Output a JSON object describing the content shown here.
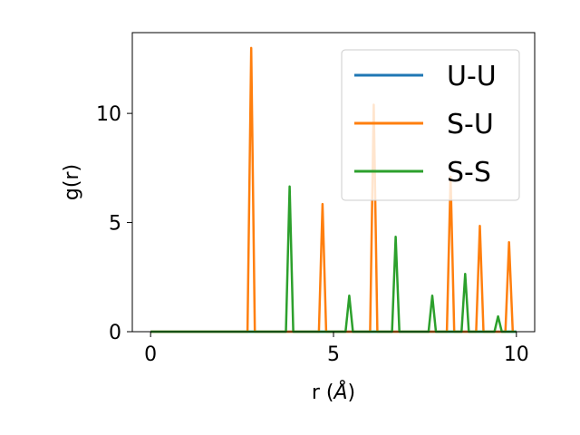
{
  "chart_data": {
    "type": "line",
    "xlabel_prefix": "r (",
    "xlabel_unit": "Å",
    "xlabel_suffix": ")",
    "ylabel": "g(r)",
    "xlim": [
      -0.5,
      10.5
    ],
    "ylim": [
      0,
      13.7
    ],
    "xticks": [
      0,
      5,
      10
    ],
    "yticks": [
      0,
      5,
      10
    ],
    "grid": false,
    "legend_position": "top-right",
    "series": [
      {
        "name": "U-U",
        "color": "#1f77b4",
        "x": [
          0,
          10
        ],
        "y": [
          0,
          0
        ]
      },
      {
        "name": "S-U",
        "color": "#ff7f0e",
        "x": [
          0,
          2.65,
          2.75,
          2.85,
          4.6,
          4.7,
          4.8,
          6.0,
          6.1,
          6.2,
          8.1,
          8.2,
          8.3,
          8.9,
          9.0,
          9.1,
          9.7,
          9.8,
          9.9
        ],
        "y": [
          0,
          0,
          13.0,
          0,
          0,
          5.85,
          0,
          0,
          10.4,
          0,
          0,
          7.1,
          0,
          0,
          4.85,
          0,
          0,
          4.1,
          0
        ]
      },
      {
        "name": "S-S",
        "color": "#2ca02c",
        "x": [
          0,
          3.7,
          3.8,
          3.9,
          5.33,
          5.43,
          5.53,
          6.6,
          6.7,
          6.8,
          7.6,
          7.7,
          7.8,
          8.5,
          8.6,
          8.7,
          9.4,
          9.5,
          9.6,
          10
        ],
        "y": [
          0,
          0,
          6.65,
          0,
          0,
          1.65,
          0,
          0,
          4.35,
          0,
          0,
          1.65,
          0,
          0,
          2.65,
          0,
          0,
          0.7,
          0,
          0
        ]
      }
    ]
  }
}
